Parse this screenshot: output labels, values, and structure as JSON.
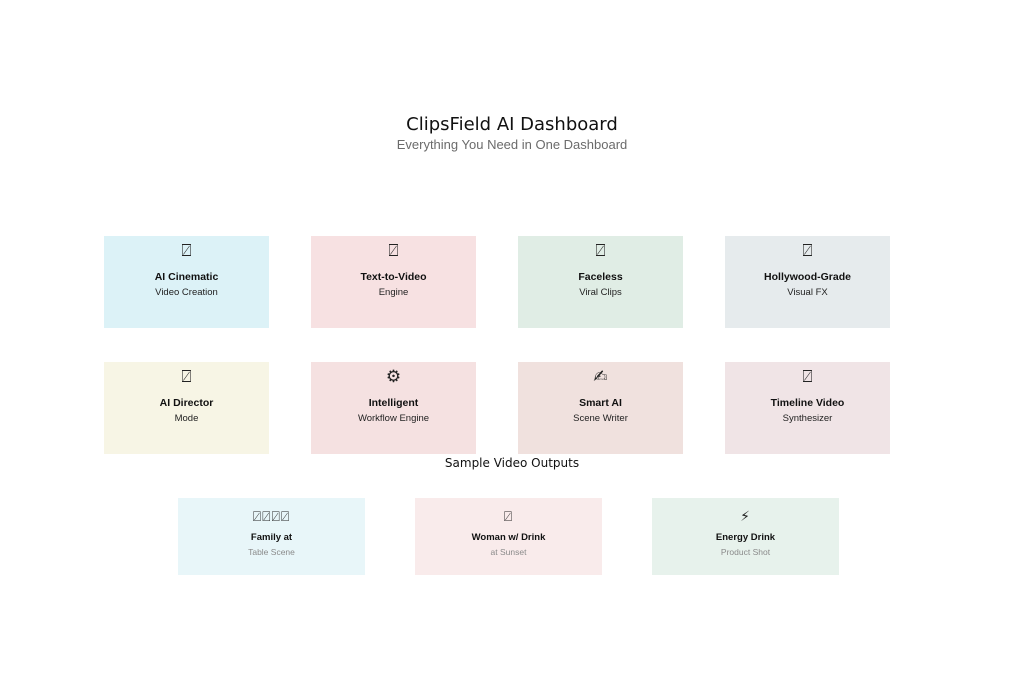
{
  "header": {
    "title": "ClipsField AI Dashboard",
    "subtitle": "Everything You Need in One Dashboard"
  },
  "features": [
    {
      "icon": "⍁",
      "icon_name": "video-frame-icon",
      "name": "AI Cinematic",
      "desc": "Video Creation",
      "color": "#dcf2f7"
    },
    {
      "icon": "⍁",
      "icon_name": "video-frame-icon",
      "name": "Text-to-Video",
      "desc": "Engine",
      "color": "#f7e1e2"
    },
    {
      "icon": "⍁",
      "icon_name": "video-frame-icon",
      "name": "Faceless",
      "desc": "Viral Clips",
      "color": "#e0ede5"
    },
    {
      "icon": "⍁",
      "icon_name": "video-frame-icon",
      "name": "Hollywood-Grade",
      "desc": "Visual FX",
      "color": "#e6ebed"
    },
    {
      "icon": "⍁",
      "icon_name": "video-frame-icon",
      "name": "AI Director",
      "desc": "Mode",
      "color": "#f7f5e5"
    },
    {
      "icon": "⚙",
      "icon_name": "gear-icon",
      "name": "Intelligent",
      "desc": "Workflow Engine",
      "color": "#f5e1e1"
    },
    {
      "icon": "✍",
      "icon_name": "writing-hand-icon",
      "name": "Smart AI",
      "desc": "Scene Writer",
      "color": "#f0e1de"
    },
    {
      "icon": "⍁",
      "icon_name": "video-frame-icon",
      "name": "Timeline Video",
      "desc": "Synthesizer",
      "color": "#f0e4e6"
    }
  ],
  "samples_title": "Sample Video Outputs",
  "samples": [
    {
      "icon": "⍁⍁⍁⍁",
      "icon_name": "family-icon",
      "name": "Family at",
      "desc": "Table Scene",
      "color": "#e8f6f9"
    },
    {
      "icon": "⍁",
      "icon_name": "woman-icon",
      "name": "Woman w/ Drink",
      "desc": "at Sunset",
      "color": "#f9ebeb"
    },
    {
      "icon": "⚡",
      "icon_name": "lightning-icon",
      "name": "Energy Drink",
      "desc": "Product Shot",
      "color": "#e7f2ec"
    }
  ]
}
